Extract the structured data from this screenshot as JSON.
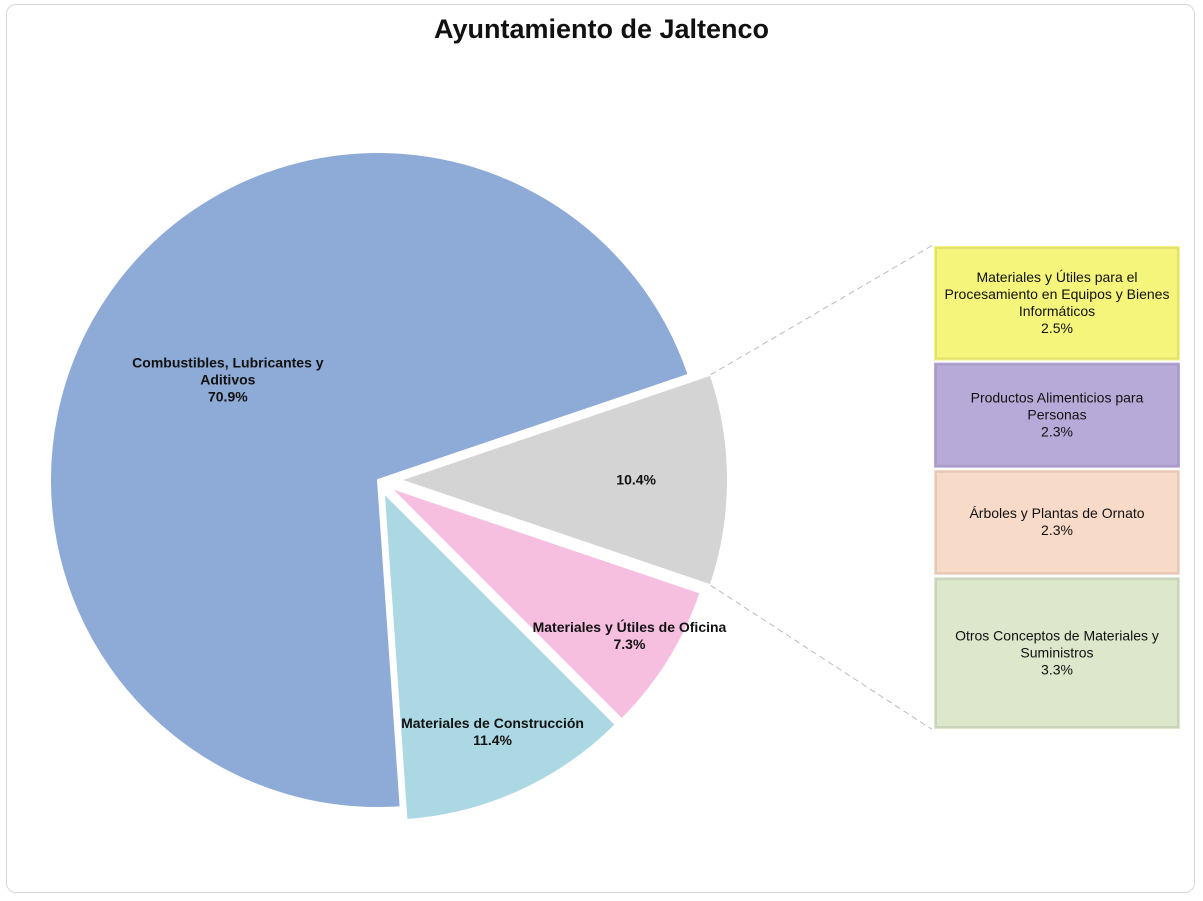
{
  "chart_data": {
    "type": "pie",
    "title": "Ayuntamiento de Jaltenco",
    "categories": [
      null,
      "Materiales y Útiles de Oficina",
      "Materiales de Construcción",
      "Combustibles, Lubricantes y Aditivos"
    ],
    "values": [
      10.4,
      7.3,
      11.4,
      70.9
    ],
    "value_labels": [
      "10.4%",
      "7.3%",
      "11.4%",
      "70.9%"
    ],
    "colors": [
      "#d4d4d4",
      "#f6bfe0",
      "#acd8e3",
      "#8eaad6"
    ],
    "breakdown": {
      "categories": [
        "Materiales y Útiles para el Procesamiento en Equipos y Bienes Informáticos",
        "Productos Alimenticios para Personas",
        "Árboles y Plantas de Ornato",
        "Otros Conceptos de Materiales y Suministros"
      ],
      "values": [
        2.5,
        2.3,
        2.3,
        3.3
      ],
      "value_labels": [
        "2.5%",
        "2.3%",
        "2.3%",
        "3.3%"
      ],
      "colors": [
        "#f5f57c",
        "#b8aad8",
        "#f8dac8",
        "#dce7cc"
      ]
    }
  }
}
